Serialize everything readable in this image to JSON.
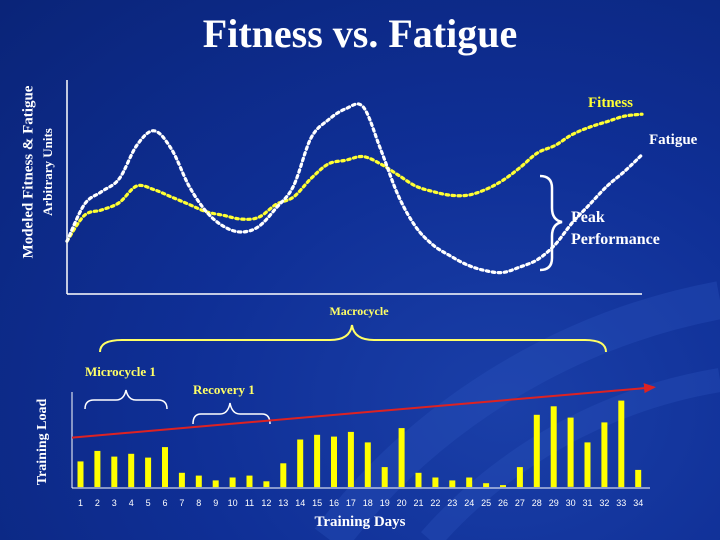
{
  "slide": {
    "title": "Fitness vs. Fatigue",
    "colors": {
      "background": "#0f2f96",
      "fitness": "#ffff33",
      "fatigue": "#ffffff",
      "bars": "#ffff00",
      "trend": "#dd2222",
      "braces": "#ffff66"
    }
  },
  "chart_data": [
    {
      "type": "line",
      "title": "",
      "ylabel": "Modeled Fitness & Fatigue",
      "ylabel2": "Arbitrary Units",
      "xlabel": "",
      "x": [
        1,
        2,
        3,
        4,
        5,
        6,
        7,
        8,
        9,
        10,
        11,
        12,
        13,
        14,
        15,
        16,
        17,
        18,
        19,
        20,
        21,
        22,
        23,
        24,
        25,
        26,
        27,
        28,
        29,
        30,
        31,
        32,
        33,
        34
      ],
      "ylim": [
        0,
        100
      ],
      "series": [
        {
          "name": "Fitness",
          "style": "dotted",
          "color": "#ffff33",
          "values": [
            20,
            34,
            37,
            41,
            50,
            48,
            44,
            40,
            36,
            34,
            32,
            33,
            40,
            44,
            54,
            62,
            64,
            66,
            62,
            56,
            50,
            47,
            45,
            45,
            48,
            53,
            60,
            68,
            72,
            78,
            82,
            85,
            88,
            89
          ]
        },
        {
          "name": "Fatigue",
          "style": "dotted",
          "color": "#ffffff",
          "values": [
            20,
            40,
            47,
            54,
            72,
            80,
            70,
            50,
            36,
            28,
            25,
            28,
            38,
            50,
            76,
            86,
            92,
            93,
            70,
            45,
            28,
            18,
            12,
            7,
            4,
            3,
            6,
            10,
            18,
            30,
            40,
            50,
            58,
            67
          ]
        }
      ],
      "annotations": [
        {
          "text": "Fitness"
        },
        {
          "text": "Fatigue"
        },
        {
          "text": "Peak"
        },
        {
          "text": "Performance"
        }
      ]
    },
    {
      "type": "bar",
      "title": "",
      "xlabel": "Training Days",
      "ylabel": "Training Load",
      "categories": [
        "1",
        "2",
        "3",
        "4",
        "5",
        "6",
        "7",
        "8",
        "9",
        "10",
        "11",
        "12",
        "13",
        "14",
        "15",
        "16",
        "17",
        "18",
        "19",
        "20",
        "21",
        "22",
        "23",
        "24",
        "25",
        "26",
        "27",
        "28",
        "29",
        "30",
        "31",
        "32",
        "33",
        "34"
      ],
      "values": [
        27,
        38,
        32,
        35,
        31,
        42,
        15,
        12,
        7,
        10,
        12,
        6,
        25,
        50,
        55,
        53,
        58,
        47,
        21,
        62,
        15,
        10,
        7,
        10,
        4,
        2,
        21,
        76,
        85,
        73,
        47,
        68,
        91,
        18
      ],
      "ylim": [
        0,
        100
      ],
      "trend": {
        "from": 52,
        "to": 105,
        "color": "#dd2222"
      },
      "annotations": [
        {
          "text": "Macrocycle"
        },
        {
          "text": "Microcycle 1"
        },
        {
          "text": "Recovery 1"
        }
      ]
    }
  ]
}
